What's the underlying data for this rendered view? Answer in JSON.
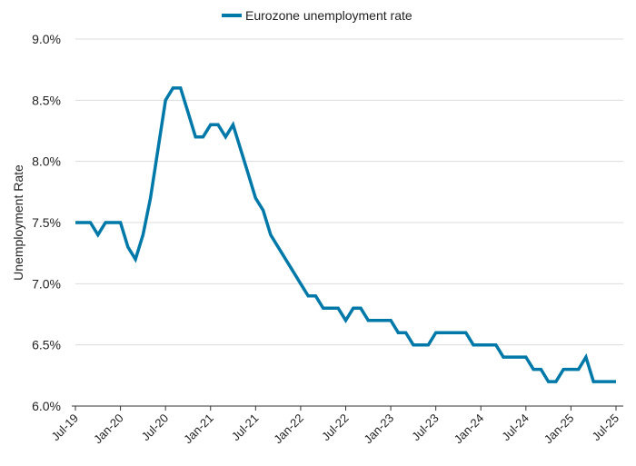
{
  "chart_data": {
    "type": "line",
    "title": "",
    "xlabel": "",
    "ylabel": "Unemployment Rate",
    "ylim": [
      6.0,
      9.0
    ],
    "yticks": [
      "6.0%",
      "6.5%",
      "7.0%",
      "7.5%",
      "8.0%",
      "8.5%",
      "9.0%"
    ],
    "ytick_values": [
      6.0,
      6.5,
      7.0,
      7.5,
      8.0,
      8.5,
      9.0
    ],
    "xticks": [
      "Jul-19",
      "Jan-20",
      "Jul-20",
      "Jan-21",
      "Jul-21",
      "Jan-22",
      "Jul-22",
      "Jan-23",
      "Jul-23",
      "Jan-24",
      "Jul-24",
      "Jan-25",
      "Jul-25"
    ],
    "x_start": "Jul-19",
    "x_end": "Jul-25",
    "frequency": "monthly",
    "grid": "horizontal",
    "legend_position": "top",
    "series": [
      {
        "name": "Eurozone unemployment rate",
        "color": "#0079a8",
        "values": [
          7.5,
          7.5,
          7.5,
          7.4,
          7.5,
          7.5,
          7.5,
          7.3,
          7.2,
          7.4,
          7.7,
          8.1,
          8.5,
          8.6,
          8.6,
          8.4,
          8.2,
          8.2,
          8.3,
          8.3,
          8.2,
          8.3,
          8.1,
          7.9,
          7.7,
          7.6,
          7.4,
          7.3,
          7.2,
          7.1,
          7.0,
          6.9,
          6.9,
          6.8,
          6.8,
          6.8,
          6.7,
          6.8,
          6.8,
          6.7,
          6.7,
          6.7,
          6.7,
          6.6,
          6.6,
          6.5,
          6.5,
          6.5,
          6.6,
          6.6,
          6.6,
          6.6,
          6.6,
          6.5,
          6.5,
          6.5,
          6.5,
          6.4,
          6.4,
          6.4,
          6.4,
          6.3,
          6.3,
          6.2,
          6.2,
          6.3,
          6.3,
          6.3,
          6.4,
          6.2,
          6.2,
          6.2,
          6.2
        ]
      }
    ]
  }
}
